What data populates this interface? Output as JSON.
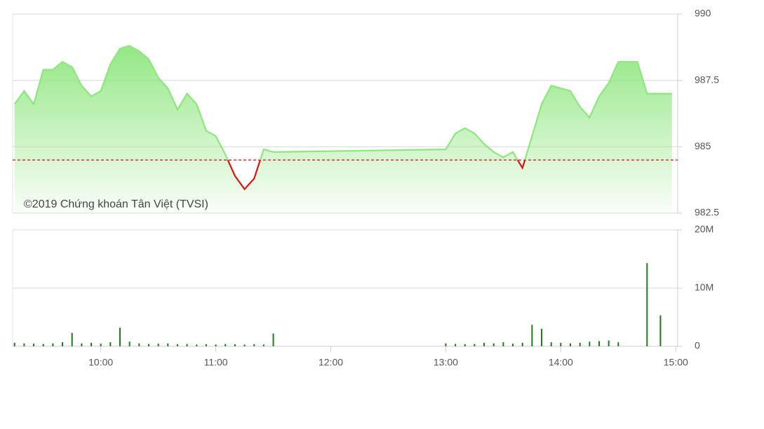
{
  "chart_data": [
    {
      "type": "line",
      "annotation": "©2019 Chứng khoán Tân Việt (TVSI)",
      "x": [
        "9:15",
        "9:20",
        "9:25",
        "9:30",
        "9:35",
        "9:40",
        "9:45",
        "9:50",
        "9:55",
        "10:00",
        "10:05",
        "10:10",
        "10:15",
        "10:20",
        "10:25",
        "10:30",
        "10:35",
        "10:40",
        "10:45",
        "10:50",
        "10:55",
        "11:00",
        "11:05",
        "11:10",
        "11:15",
        "11:20",
        "11:25",
        "11:30",
        "13:00",
        "13:05",
        "13:10",
        "13:15",
        "13:20",
        "13:25",
        "13:30",
        "13:35",
        "13:40",
        "13:45",
        "13:50",
        "13:55",
        "14:00",
        "14:05",
        "14:10",
        "14:15",
        "14:20",
        "14:25",
        "14:30",
        "14:40",
        "14:45",
        "14:58"
      ],
      "values": [
        986.6,
        987.1,
        986.6,
        987.9,
        987.9,
        988.2,
        988.0,
        987.3,
        986.9,
        987.1,
        988.1,
        988.7,
        988.8,
        988.6,
        988.3,
        987.6,
        987.2,
        986.4,
        987.0,
        986.6,
        985.6,
        985.4,
        984.7,
        983.9,
        983.4,
        983.8,
        984.9,
        984.8,
        984.9,
        985.5,
        985.7,
        985.5,
        985.1,
        984.8,
        984.6,
        984.8,
        984.2,
        985.4,
        986.6,
        987.3,
        987.2,
        987.1,
        986.5,
        986.1,
        986.9,
        987.4,
        988.2,
        988.2,
        987.0,
        987.0
      ],
      "color": "#8ee67e",
      "below_color": "#e01010",
      "reference": 984.5,
      "reference_color": "#d01010",
      "xlim": [
        "9:14",
        "15:01"
      ],
      "ylim": [
        982.5,
        990
      ],
      "yticks": [
        982.5,
        985,
        987.5,
        990
      ],
      "grid": true
    },
    {
      "type": "bar",
      "x": [
        "9:15",
        "9:20",
        "9:25",
        "9:30",
        "9:35",
        "9:40",
        "9:45",
        "9:50",
        "9:55",
        "10:00",
        "10:05",
        "10:10",
        "10:15",
        "10:20",
        "10:25",
        "10:30",
        "10:35",
        "10:40",
        "10:45",
        "10:50",
        "10:55",
        "11:00",
        "11:05",
        "11:10",
        "11:15",
        "11:20",
        "11:25",
        "11:30",
        "13:00",
        "13:05",
        "13:10",
        "13:15",
        "13:20",
        "13:25",
        "13:30",
        "13:35",
        "13:40",
        "13:45",
        "13:50",
        "13:55",
        "14:00",
        "14:05",
        "14:10",
        "14:15",
        "14:20",
        "14:25",
        "14:30",
        "14:45",
        "14:52"
      ],
      "values": [
        600000,
        500000,
        450000,
        400000,
        500000,
        700000,
        2300000,
        500000,
        600000,
        450000,
        700000,
        3200000,
        800000,
        500000,
        400000,
        450000,
        500000,
        350000,
        400000,
        300000,
        350000,
        300000,
        400000,
        350000,
        300000,
        350000,
        300000,
        2200000,
        500000,
        400000,
        350000,
        400000,
        600000,
        500000,
        700000,
        450000,
        600000,
        3700000,
        3000000,
        700000,
        600000,
        500000,
        600000,
        800000,
        900000,
        1000000,
        700000,
        14300000,
        5300000
      ],
      "color": "#1f7a1f",
      "xlim": [
        "9:14",
        "15:01"
      ],
      "xticks": [
        "10:00",
        "11:00",
        "12:00",
        "13:00",
        "14:00",
        "15:00"
      ],
      "ylim": [
        0,
        20000000
      ],
      "yticks": [
        0,
        {
          "value": 10000000,
          "label": "10M"
        },
        {
          "value": 20000000,
          "label": "20M"
        }
      ],
      "grid": true
    }
  ]
}
